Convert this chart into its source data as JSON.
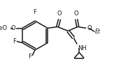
{
  "bg_color": "#ffffff",
  "line_color": "#1a1a1a",
  "lw": 1.1,
  "font_size": 6.0,
  "fig_width": 1.73,
  "fig_height": 1.05,
  "dpi": 100,
  "xlim": [
    0,
    173
  ],
  "ylim": [
    0,
    105
  ]
}
